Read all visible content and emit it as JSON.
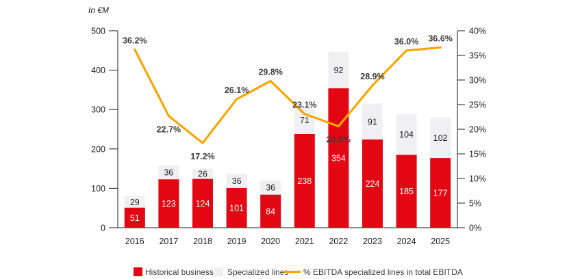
{
  "chart_data": {
    "type": "bar",
    "subtype": "stacked-column-with-line",
    "title": "In €M",
    "categories": [
      "2016",
      "2017",
      "2018",
      "2019",
      "2020",
      "2021",
      "2022",
      "2023",
      "2024",
      "2025"
    ],
    "series": [
      {
        "name": "Historical business",
        "color": "#e30613",
        "label_color": "#ffffff",
        "values": [
          51,
          123,
          124,
          101,
          84,
          238,
          354,
          224,
          185,
          177
        ]
      },
      {
        "name": "Specialized lines",
        "color": "#f0f0f2",
        "label_color": "#1d1d1b",
        "values": [
          29,
          36,
          26,
          36,
          36,
          71,
          92,
          91,
          104,
          102
        ]
      }
    ],
    "line_series": {
      "name": "% EBITDA specialized lines in total EBITDA",
      "color": "#f7a600",
      "values": [
        36.2,
        22.7,
        17.2,
        26.1,
        29.8,
        23.1,
        20.6,
        28.9,
        36.0,
        36.6
      ],
      "labels": [
        "36.2%",
        "22.7%",
        "17.2%",
        "26.1%",
        "29.8%",
        "23.1%",
        "20.6%",
        "28.9%",
        "36.0%",
        "36.6%"
      ],
      "label_position": [
        "above",
        "below",
        "below",
        "above",
        "above",
        "above",
        "below",
        "above",
        "above",
        "above"
      ]
    },
    "left_axis": {
      "min": 0,
      "max": 500,
      "step": 100,
      "ticks": [
        "0",
        "100",
        "200",
        "300",
        "400",
        "500"
      ]
    },
    "right_axis": {
      "min": 0,
      "max": 40,
      "step": 5,
      "ticks": [
        "0%",
        "5%",
        "10%",
        "15%",
        "20%",
        "25%",
        "30%",
        "35%",
        "40%"
      ]
    },
    "legend": [
      {
        "swatch": "square",
        "color": "#e30613",
        "label": "Historical business"
      },
      {
        "swatch": "square",
        "color": "#f0f0f2",
        "label": "Specialized lines"
      },
      {
        "swatch": "line",
        "color": "#f7a600",
        "label": "% EBITDA specialized lines in total EBITDA"
      }
    ],
    "grid": "off",
    "legend_position": "bottom"
  }
}
